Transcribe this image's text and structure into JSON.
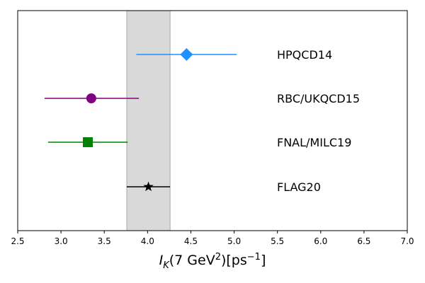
{
  "chart_data": {
    "type": "scatter",
    "title": "",
    "xlabel": {
      "italic": "I",
      "sub": "K",
      "mid": "(7 GeV",
      "sup1": "2",
      "tail": ")[ps",
      "sup2": "−1",
      "end": "]"
    },
    "ylabel": "",
    "xlim": [
      2.5,
      7.0
    ],
    "xticks": [
      "2.5",
      "3.0",
      "3.5",
      "4.0",
      "4.5",
      "5.0",
      "5.5",
      "6.0",
      "6.5",
      "7.0"
    ],
    "band": {
      "lo": 3.76,
      "hi": 4.26,
      "color": "#d9d9d9"
    },
    "grid": false,
    "points": [
      {
        "label": "HPQCD14",
        "value": 4.45,
        "err_lo": 3.87,
        "err_hi": 5.03,
        "marker": "diamond",
        "color": "#1e90ff"
      },
      {
        "label": "RBC/UKQCD15",
        "value": 3.35,
        "err_lo": 2.81,
        "err_hi": 3.9,
        "marker": "circle",
        "color": "#800080"
      },
      {
        "label": "FNAL/MILC19",
        "value": 3.31,
        "err_lo": 2.85,
        "err_hi": 3.77,
        "marker": "square",
        "color": "#008000"
      },
      {
        "label": "FLAG20",
        "value": 4.01,
        "err_lo": 3.76,
        "err_hi": 4.26,
        "marker": "star",
        "color": "#000000"
      }
    ]
  }
}
